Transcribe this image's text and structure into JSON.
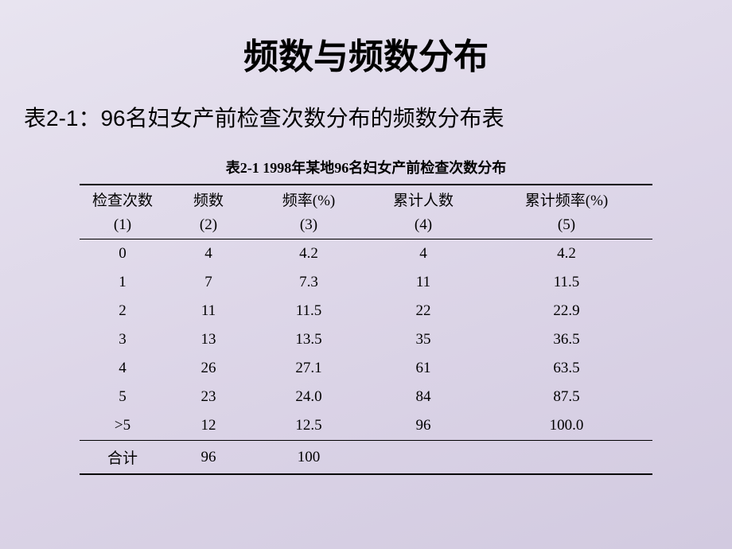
{
  "slide": {
    "main_title": "频数与频数分布",
    "subtitle": "表2-1：96名妇女产前检查次数分布的频数分布表",
    "table_caption": "表2-1  1998年某地96名妇女产前检查次数分布",
    "background_colors": [
      "#e8e4f0",
      "#d2cae0"
    ],
    "text_color": "#000000",
    "border_color": "#000000"
  },
  "table": {
    "headers_row1": [
      "检查次数",
      "频数",
      "频率(%)",
      "累计人数",
      "累计频率(%)"
    ],
    "headers_row2": [
      "(1)",
      "(2)",
      "(3)",
      "(4)",
      "(5)"
    ],
    "column_widths_pct": [
      15,
      15,
      20,
      20,
      30
    ],
    "rows": [
      [
        "0",
        "4",
        "4.2",
        "4",
        "4.2"
      ],
      [
        "1",
        "7",
        "7.3",
        "11",
        "11.5"
      ],
      [
        "2",
        "11",
        "11.5",
        "22",
        "22.9"
      ],
      [
        "3",
        "13",
        "13.5",
        "35",
        "36.5"
      ],
      [
        "4",
        "26",
        "27.1",
        "61",
        "63.5"
      ],
      [
        "5",
        "23",
        "24.0",
        "84",
        "87.5"
      ],
      [
        ">5",
        "12",
        "12.5",
        "96",
        "100.0"
      ]
    ],
    "total_row": [
      "合计",
      "96",
      "100",
      "",
      ""
    ],
    "header_fontsize": 19,
    "body_fontsize": 19,
    "caption_fontsize": 18
  }
}
